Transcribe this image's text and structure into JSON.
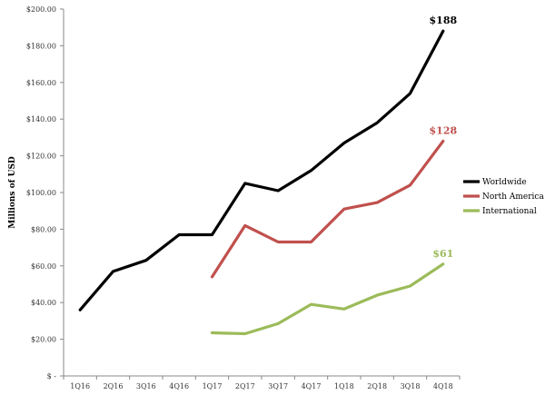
{
  "chart_data": {
    "type": "line",
    "title": "",
    "xlabel": "",
    "ylabel": "Millions of USD",
    "categories": [
      "1Q16",
      "2Q16",
      "3Q16",
      "4Q16",
      "1Q17",
      "2Q17",
      "3Q17",
      "4Q17",
      "1Q18",
      "2Q18",
      "3Q18",
      "4Q18"
    ],
    "ylim": [
      0,
      200
    ],
    "y_ticks": [
      0,
      20,
      40,
      60,
      80,
      100,
      120,
      140,
      160,
      180,
      200
    ],
    "y_tick_labels": [
      "$ -",
      "$20.00",
      "$40.00",
      "$60.00",
      "$80.00",
      "$100.00",
      "$120.00",
      "$140.00",
      "$160.00",
      "$180.00",
      "$200.00"
    ],
    "grid": false,
    "legend_position": "right",
    "series": [
      {
        "name": "Worldwide",
        "color": "#000000",
        "values": [
          36,
          57,
          63,
          77,
          77,
          105,
          101,
          112,
          127,
          138,
          154,
          188
        ],
        "end_label": "$188"
      },
      {
        "name": "North America",
        "color": "#c0504d",
        "values": [
          null,
          null,
          null,
          null,
          54,
          82,
          73,
          73,
          91,
          94.5,
          104,
          128
        ],
        "end_label": "$128"
      },
      {
        "name": "International",
        "color": "#9bbb59",
        "values": [
          null,
          null,
          null,
          null,
          23.5,
          23,
          28.5,
          39,
          36.5,
          44,
          49,
          61
        ],
        "end_label": "$61"
      }
    ]
  }
}
